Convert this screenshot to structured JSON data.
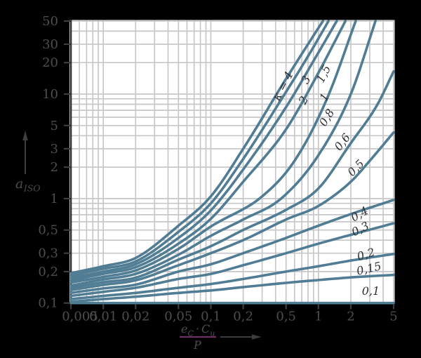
{
  "figure": {
    "background": "#000000",
    "plot_background": "#ffffff"
  },
  "labels": {
    "y_main": "a",
    "y_sub": "ISO",
    "x_num_e": "e",
    "x_num_e_sub": "C",
    "x_num_dot": "·",
    "x_num_C": "C",
    "x_num_C_sub": "u",
    "x_den": "P"
  },
  "chart_data": {
    "type": "line",
    "title": "",
    "xlabel": "(e_C · C_u) / P",
    "ylabel": "a_ISO",
    "x_scale": "log",
    "y_scale": "log",
    "xlim": [
      0.005,
      5
    ],
    "ylim": [
      0.1,
      50
    ],
    "grid": true,
    "colors": {
      "curve": "#517d94",
      "grid": "#c7c7ca",
      "axis_text": "#4d4c50",
      "tick": "#3e3d41",
      "spine": "#2e2d31",
      "curve_label": "#2e3135",
      "accent": "#6c2f62"
    },
    "x_grid": [
      0.006,
      0.007,
      0.008,
      0.009,
      0.01,
      0.02,
      0.03,
      0.04,
      0.05,
      0.06,
      0.07,
      0.08,
      0.09,
      0.1,
      0.2,
      0.3,
      0.4,
      0.5,
      0.6,
      0.7,
      0.8,
      0.9,
      1,
      2,
      3,
      4,
      5
    ],
    "y_grid": [
      0.2,
      0.3,
      0.4,
      0.5,
      0.6,
      0.7,
      0.8,
      0.9,
      1,
      2,
      3,
      4,
      5,
      6,
      7,
      8,
      9,
      10,
      20,
      30,
      40,
      50
    ],
    "x_ticks": [
      {
        "v": 0.005,
        "label": "0,005",
        "dx": 13
      },
      {
        "v": 0.01,
        "label": "0,01"
      },
      {
        "v": 0.02,
        "label": "0,02"
      },
      {
        "v": 0.05,
        "label": "0,05"
      },
      {
        "v": 0.1,
        "label": "0,1"
      },
      {
        "v": 0.2,
        "label": "0,2"
      },
      {
        "v": 0.5,
        "label": "0,5"
      },
      {
        "v": 1,
        "label": "1"
      },
      {
        "v": 2,
        "label": "2"
      },
      {
        "v": 5,
        "label": "5"
      }
    ],
    "y_ticks": [
      {
        "v": 50,
        "label": "50"
      },
      {
        "v": 30,
        "label": "30"
      },
      {
        "v": 20,
        "label": "20"
      },
      {
        "v": 10,
        "label": "10"
      },
      {
        "v": 5,
        "label": "5"
      },
      {
        "v": 3,
        "label": "3"
      },
      {
        "v": 2,
        "label": "2"
      },
      {
        "v": 1,
        "label": "1"
      },
      {
        "v": 0.5,
        "label": "0,5"
      },
      {
        "v": 0.3,
        "label": "0,3"
      },
      {
        "v": 0.2,
        "label": "0,2"
      },
      {
        "v": 0.1,
        "label": "0,1"
      }
    ],
    "series": [
      {
        "kappa": 4,
        "label": "κ = 4",
        "label_pos": {
          "x": 0.5,
          "a": 11.5,
          "angle": -62
        },
        "points": [
          [
            0.005,
            0.193
          ],
          [
            0.01,
            0.225
          ],
          [
            0.02,
            0.27
          ],
          [
            0.05,
            0.55
          ],
          [
            0.1,
            1.05
          ],
          [
            0.2,
            3.0
          ],
          [
            0.5,
            14
          ],
          [
            0.8,
            30
          ],
          [
            1.1,
            50
          ]
        ]
      },
      {
        "kappa": 3,
        "label": "3",
        "label_pos": {
          "x": 0.82,
          "a": 13.2,
          "angle": -62
        },
        "points": [
          [
            0.005,
            0.183
          ],
          [
            0.01,
            0.213
          ],
          [
            0.02,
            0.25
          ],
          [
            0.05,
            0.48
          ],
          [
            0.1,
            0.9
          ],
          [
            0.2,
            2.4
          ],
          [
            0.5,
            10.5
          ],
          [
            0.8,
            23
          ],
          [
            1.24,
            50
          ]
        ]
      },
      {
        "kappa": 2,
        "label": "2",
        "label_pos": {
          "x": 0.78,
          "a": 8.4,
          "angle": -62
        },
        "points": [
          [
            0.005,
            0.174
          ],
          [
            0.01,
            0.2
          ],
          [
            0.02,
            0.235
          ],
          [
            0.05,
            0.42
          ],
          [
            0.1,
            0.77
          ],
          [
            0.2,
            1.9
          ],
          [
            0.5,
            7.5
          ],
          [
            1.0,
            25
          ],
          [
            1.48,
            50
          ]
        ]
      },
      {
        "kappa": 1.5,
        "label": "1,5",
        "label_pos": {
          "x": 1.2,
          "a": 15.0,
          "angle": -63
        },
        "points": [
          [
            0.005,
            0.165
          ],
          [
            0.01,
            0.19
          ],
          [
            0.02,
            0.22
          ],
          [
            0.05,
            0.37
          ],
          [
            0.1,
            0.64
          ],
          [
            0.2,
            1.45
          ],
          [
            0.5,
            4.6
          ],
          [
            1.0,
            16
          ],
          [
            1.78,
            50
          ]
        ]
      },
      {
        "kappa": 1,
        "label": "1",
        "label_pos": {
          "x": 1.22,
          "a": 9.0,
          "angle": -63
        },
        "points": [
          [
            0.005,
            0.157
          ],
          [
            0.01,
            0.178
          ],
          [
            0.02,
            0.205
          ],
          [
            0.05,
            0.33
          ],
          [
            0.1,
            0.54
          ],
          [
            0.3,
            1.05
          ],
          [
            0.6,
            2.3
          ],
          [
            1.2,
            9
          ],
          [
            2.22,
            50
          ]
        ]
      },
      {
        "kappa": 0.8,
        "label": "0,8",
        "label_pos": {
          "x": 1.28,
          "a": 5.7,
          "angle": -58
        },
        "points": [
          [
            0.005,
            0.147
          ],
          [
            0.01,
            0.168
          ],
          [
            0.02,
            0.19
          ],
          [
            0.05,
            0.29
          ],
          [
            0.1,
            0.44
          ],
          [
            0.2,
            0.63
          ],
          [
            0.45,
            1.0
          ],
          [
            1.0,
            2.6
          ],
          [
            2.0,
            10
          ],
          [
            3.39,
            50
          ]
        ]
      },
      {
        "kappa": 0.6,
        "label": "0,6",
        "label_pos": {
          "x": 1.78,
          "a": 3.3,
          "angle": -52
        },
        "points": [
          [
            0.005,
            0.14
          ],
          [
            0.01,
            0.158
          ],
          [
            0.02,
            0.175
          ],
          [
            0.05,
            0.26
          ],
          [
            0.1,
            0.35
          ],
          [
            0.2,
            0.5
          ],
          [
            0.5,
            0.78
          ],
          [
            1.0,
            1.25
          ],
          [
            2.0,
            3.4
          ],
          [
            3.5,
            7.8
          ],
          [
            5,
            16.5
          ]
        ]
      },
      {
        "kappa": 0.5,
        "label": "0,5",
        "label_pos": {
          "x": 2.36,
          "a": 1.85,
          "angle": -45
        },
        "points": [
          [
            0.005,
            0.133
          ],
          [
            0.01,
            0.149
          ],
          [
            0.02,
            0.165
          ],
          [
            0.05,
            0.23
          ],
          [
            0.1,
            0.3
          ],
          [
            0.2,
            0.4
          ],
          [
            0.5,
            0.63
          ],
          [
            1.0,
            0.85
          ],
          [
            2.0,
            1.45
          ],
          [
            3.0,
            2.3
          ],
          [
            5,
            4.3
          ]
        ]
      },
      {
        "kappa": 0.4,
        "label": "0,4",
        "label_pos": {
          "x": 2.51,
          "a": 0.66,
          "angle": -30
        },
        "points": [
          [
            0.005,
            0.125
          ],
          [
            0.01,
            0.138
          ],
          [
            0.02,
            0.15
          ],
          [
            0.05,
            0.2
          ],
          [
            0.1,
            0.235
          ],
          [
            0.2,
            0.3
          ],
          [
            0.5,
            0.42
          ],
          [
            1.0,
            0.55
          ],
          [
            2.0,
            0.71
          ],
          [
            5,
            0.97
          ]
        ]
      },
      {
        "kappa": 0.3,
        "label": "0,3",
        "label_pos": {
          "x": 2.54,
          "a": 0.475,
          "angle": -27
        },
        "points": [
          [
            0.005,
            0.117
          ],
          [
            0.01,
            0.128
          ],
          [
            0.02,
            0.14
          ],
          [
            0.05,
            0.17
          ],
          [
            0.1,
            0.19
          ],
          [
            0.2,
            0.23
          ],
          [
            0.5,
            0.3
          ],
          [
            1.0,
            0.37
          ],
          [
            2.0,
            0.45
          ],
          [
            5,
            0.58
          ]
        ]
      },
      {
        "kappa": 0.2,
        "label": "0,2",
        "label_pos": {
          "x": 2.83,
          "a": 0.27,
          "angle": -17
        },
        "points": [
          [
            0.005,
            0.109
          ],
          [
            0.01,
            0.117
          ],
          [
            0.02,
            0.125
          ],
          [
            0.05,
            0.14
          ],
          [
            0.1,
            0.152
          ],
          [
            0.2,
            0.17
          ],
          [
            0.5,
            0.2
          ],
          [
            1.0,
            0.225
          ],
          [
            2.0,
            0.255
          ],
          [
            5,
            0.295
          ]
        ]
      },
      {
        "kappa": 0.15,
        "label": "0,15",
        "label_pos": {
          "x": 3.0,
          "a": 0.197,
          "angle": -13
        },
        "points": [
          [
            0.005,
            0.103
          ],
          [
            0.01,
            0.109
          ],
          [
            0.02,
            0.115
          ],
          [
            0.05,
            0.125
          ],
          [
            0.1,
            0.132
          ],
          [
            0.2,
            0.142
          ],
          [
            0.5,
            0.156
          ],
          [
            1.0,
            0.166
          ],
          [
            2.0,
            0.176
          ],
          [
            5,
            0.186
          ]
        ]
      },
      {
        "kappa": 0.1,
        "label": "0,1",
        "label_pos": {
          "x": 3.07,
          "a": 0.12,
          "angle": 0
        },
        "points": [
          [
            0.005,
            0.1
          ],
          [
            5,
            0.1
          ]
        ]
      }
    ]
  }
}
